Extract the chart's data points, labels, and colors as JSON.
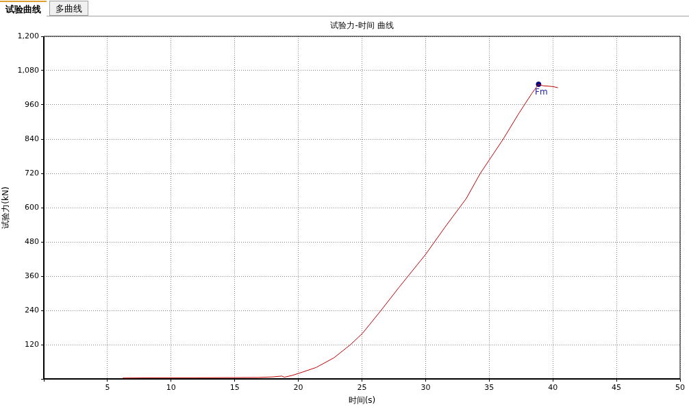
{
  "chart_data": {
    "type": "line",
    "title": "试验力-时间 曲线",
    "xlabel": "时间(s)",
    "ylabel": "试验力(kN)",
    "annotations": [
      "试验曲线",
      "多曲线",
      {
        "text": "Fm",
        "x": 38.88,
        "y": 1032
      }
    ],
    "xlim": [
      0,
      50
    ],
    "xticks": [
      {
        "value": 0,
        "label": null
      },
      5,
      10,
      15,
      20,
      25,
      30,
      35,
      40,
      45,
      50
    ],
    "ylim": [
      0,
      1200
    ],
    "yticks": [
      {
        "value": 0,
        "label": null
      },
      120,
      240,
      360,
      480,
      600,
      720,
      840,
      960,
      {
        "value": 1080,
        "label": "1,080"
      },
      {
        "value": 1200,
        "label": "1,200"
      }
    ],
    "grid": true,
    "legend": false,
    "series": [
      {
        "color": "#c00000",
        "marker": "none",
        "x": [
          6.2,
          9.2,
          12,
          16.8,
          18.0,
          18.7,
          18.9,
          19.5,
          20,
          21.4,
          22.8,
          24.1,
          25.05,
          26.5,
          27.9,
          30,
          31.5,
          33.2,
          34.3,
          36.1,
          37.3,
          38.35,
          38.88,
          39.2,
          40.0,
          40.4
        ],
        "values": [
          3,
          4,
          4,
          5,
          7,
          10,
          6,
          12,
          19,
          40,
          74,
          120,
          160,
          240,
          320,
          436,
          530,
          632,
          720,
          840,
          928,
          1000,
          1032,
          1027,
          1024,
          1020
        ]
      },
      {
        "type": "scatter",
        "color": "#000080",
        "marker": "circle",
        "x": [
          38.88
        ],
        "values": [
          1032
        ]
      }
    ]
  }
}
